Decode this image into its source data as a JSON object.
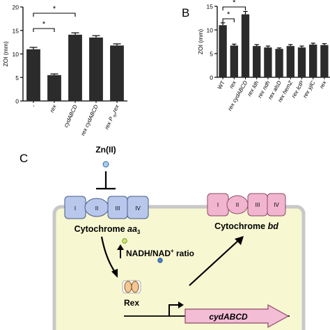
{
  "chart_data": [
    {
      "panel": "",
      "type": "bar",
      "ylabel": "ZOI (mm)",
      "ylim": [
        0,
        20
      ],
      "yticks": [
        "0",
        "5",
        "10",
        "15",
        "20"
      ],
      "categories": [
        "-",
        "rex",
        "cydABCD",
        "rex cydABCD",
        "rex P"
      ],
      "category_extra": {
        "sub": "tyr",
        "tail": "rex"
      },
      "values": [
        11.0,
        5.5,
        14.1,
        13.5,
        11.8
      ],
      "errors": [
        0.4,
        0.25,
        0.4,
        0.4,
        0.35
      ],
      "significance": [
        {
          "pair": [
            0,
            1
          ],
          "label": "*"
        },
        {
          "pair": [
            0,
            2
          ],
          "label": "*"
        }
      ]
    },
    {
      "panel": "B",
      "type": "bar",
      "ylabel": "ZOI (mm)",
      "ylim": [
        0,
        15
      ],
      "yticks": [
        "0",
        "5",
        "10",
        "15"
      ],
      "categories": [
        "WT",
        "rex",
        "rex cydABCD",
        "rex ldh",
        "rex ndh",
        "rex alsD",
        "rex hemZ",
        "rex lctP",
        "rex yjlC",
        "rex"
      ],
      "values": [
        11.0,
        6.7,
        13.3,
        6.6,
        6.3,
        6.0,
        6.6,
        6.3,
        6.9,
        6.8
      ],
      "errors": [
        0.5,
        0.3,
        0.6,
        0.3,
        0.3,
        0.2,
        0.3,
        0.3,
        0.3,
        0.3
      ],
      "significance": [
        {
          "pair": [
            0,
            1
          ],
          "label": "*"
        },
        {
          "pair": [
            0,
            2
          ],
          "label": "*"
        }
      ]
    }
  ],
  "panel_c": {
    "label": "C",
    "zn_label": "Zn(II)",
    "aa3_subunits": [
      "I",
      "II",
      "III",
      "IV"
    ],
    "aa3_label_prefix": "Cytochrome ",
    "aa3_label_italic": "aa",
    "aa3_label_sub": "3",
    "bd_subunits": [
      "I",
      "II",
      "III",
      "IV"
    ],
    "bd_label_prefix": "Cytochrome ",
    "bd_label_italic": "bd",
    "ratio_pre": "NADH/NAD",
    "ratio_sup": "+",
    "ratio_post": " ratio",
    "rex_label": "Rex",
    "gene_label": "cydABCD",
    "colors": {
      "cell_fill": "#f7f7d2",
      "cell_border": "#c8c8c8",
      "aa3_fill": "#b8c8ec",
      "bd_fill": "#f2b5cf",
      "rex_fill": "#f2c898",
      "gene_fill": "#f3bdd6",
      "zn_dot": "#a9cdee",
      "green_dot": "#cfe86a",
      "blue_dot": "#4a82c8",
      "bar": "#2b2b2b"
    }
  }
}
